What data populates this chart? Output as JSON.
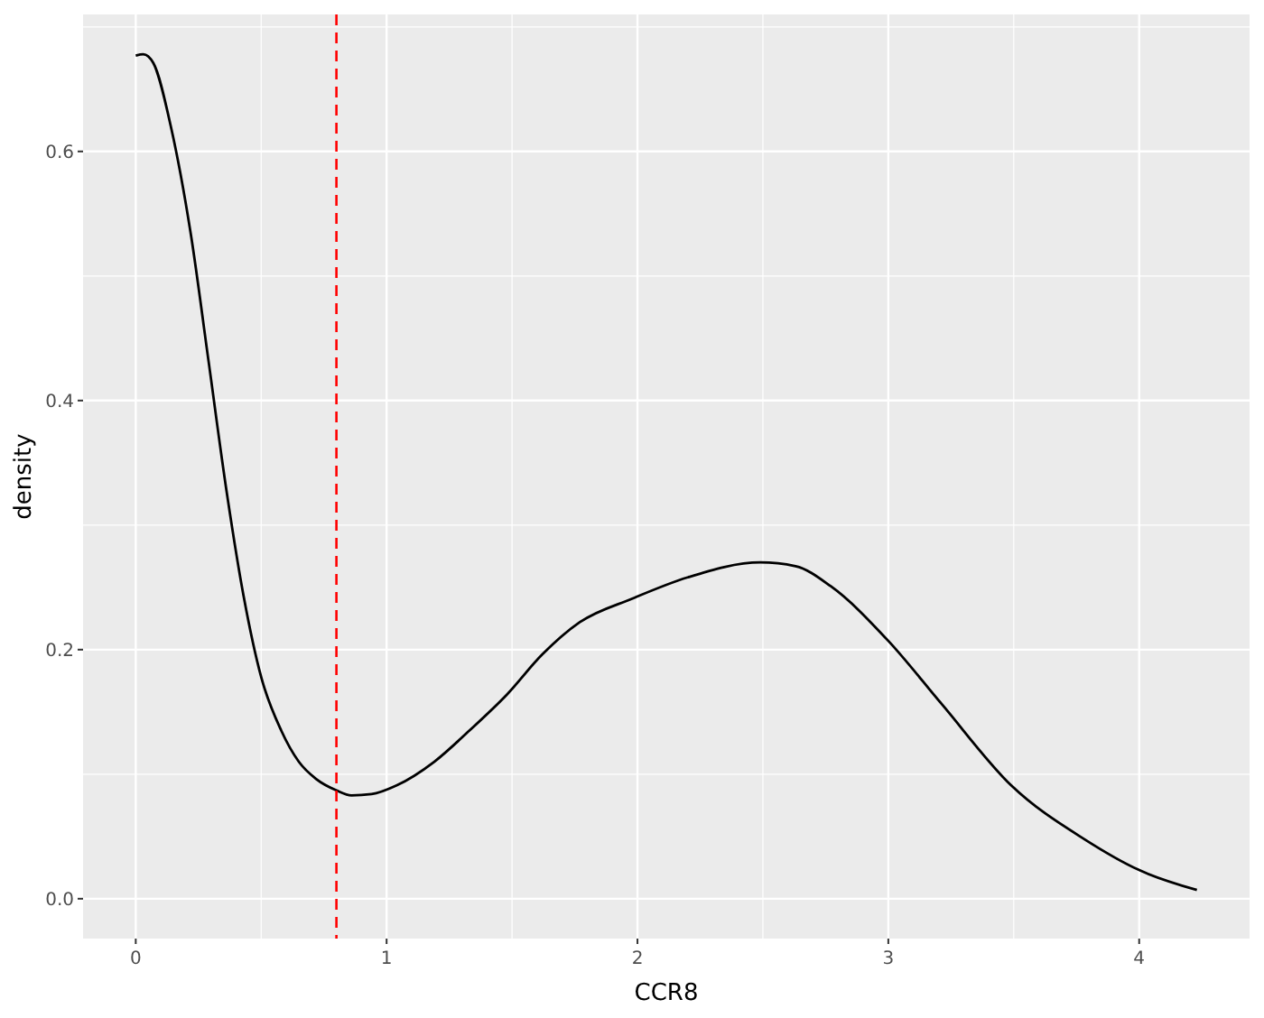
{
  "chart_data": {
    "type": "line",
    "xlabel": "CCR8",
    "ylabel": "density",
    "xlim": [
      -0.21,
      4.44
    ],
    "ylim": [
      -0.032,
      0.71
    ],
    "xticks": [
      0,
      1,
      2,
      3,
      4
    ],
    "yticks": [
      {
        "value": 0,
        "label": "0.0"
      },
      {
        "value": 0.2,
        "label": "0.2"
      },
      {
        "value": 0.4,
        "label": "0.4"
      },
      {
        "value": 0.6,
        "label": "0.6"
      }
    ],
    "grid": true,
    "line_style": "solid",
    "series": [
      {
        "color": "#000000",
        "x": [
          0,
          0.03,
          0.07,
          0.14,
          0.22,
          0.29,
          0.36,
          0.43,
          0.5,
          0.58,
          0.65,
          0.72,
          0.8,
          0.86,
          0.94,
          1.04,
          1.19,
          1.33,
          1.48,
          1.62,
          1.77,
          1.98,
          2.2,
          2.49,
          2.63,
          2.77,
          3.0,
          3.21,
          3.49,
          3.78,
          4.0,
          4.23
        ],
        "values": [
          0.677,
          0.678,
          0.671,
          0.62,
          0.533,
          0.432,
          0.33,
          0.243,
          0.178,
          0.135,
          0.11,
          0.096,
          0.087,
          0.083,
          0.084,
          0.091,
          0.11,
          0.135,
          0.164,
          0.196,
          0.222,
          0.241,
          0.258,
          0.27,
          0.267,
          0.251,
          0.207,
          0.157,
          0.091,
          0.048,
          0.023,
          0.007
        ]
      }
    ],
    "ref_lines": [
      {
        "axis": "x",
        "value": 0.8,
        "color": "#ff0000",
        "line_style": "dashed"
      }
    ]
  }
}
